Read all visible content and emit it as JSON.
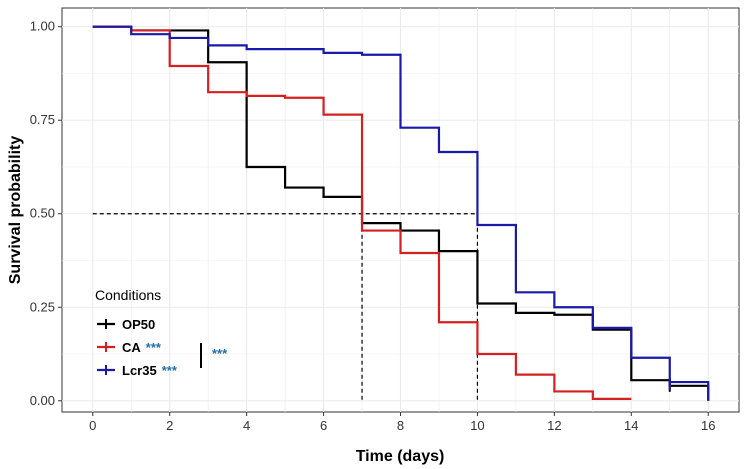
{
  "chart_data": {
    "type": "line",
    "step": true,
    "xlabel": "Time (days)",
    "ylabel": "Survival probability",
    "xlim": [
      -0.8,
      16.8
    ],
    "ylim": [
      -0.03,
      1.05
    ],
    "x_ticks": [
      0,
      2,
      4,
      6,
      8,
      10,
      12,
      14,
      16
    ],
    "y_ticks": [
      0.0,
      0.25,
      0.5,
      0.75,
      1.0
    ],
    "y_tick_labels": [
      "0.00",
      "0.25",
      "0.50",
      "0.75",
      "1.00"
    ],
    "grid": true,
    "median_guides": {
      "y": 0.5,
      "x_values": [
        7,
        10
      ]
    },
    "legend": {
      "title": "Conditions",
      "placement": "bottom-left",
      "comparison_marker": "***"
    },
    "series": [
      {
        "name": "OP50",
        "color": "#000000",
        "significance": "",
        "steps": [
          [
            0,
            1.0
          ],
          [
            1,
            0.99
          ],
          [
            3,
            0.905
          ],
          [
            4,
            0.625
          ],
          [
            5,
            0.57
          ],
          [
            6,
            0.545
          ],
          [
            7,
            0.475
          ],
          [
            8,
            0.455
          ],
          [
            9,
            0.4
          ],
          [
            10,
            0.26
          ],
          [
            11,
            0.235
          ],
          [
            12,
            0.23
          ],
          [
            13,
            0.19
          ],
          [
            14,
            0.055
          ],
          [
            15,
            0.04
          ],
          [
            16,
            0.0
          ]
        ],
        "censor": [
          [
            15,
            0.04
          ]
        ]
      },
      {
        "name": "CA",
        "color": "#d42020",
        "significance": "***",
        "steps": [
          [
            0,
            1.0
          ],
          [
            1,
            0.99
          ],
          [
            2,
            0.895
          ],
          [
            3,
            0.825
          ],
          [
            4,
            0.815
          ],
          [
            5,
            0.81
          ],
          [
            6,
            0.765
          ],
          [
            7,
            0.455
          ],
          [
            8,
            0.395
          ],
          [
            9,
            0.21
          ],
          [
            10,
            0.125
          ],
          [
            11,
            0.07
          ],
          [
            12,
            0.025
          ],
          [
            13,
            0.005
          ],
          [
            14,
            0.005
          ]
        ],
        "censor": []
      },
      {
        "name": "Lcr35",
        "color": "#1a1aaa",
        "significance": "***",
        "steps": [
          [
            0,
            1.0
          ],
          [
            1,
            0.98
          ],
          [
            2,
            0.97
          ],
          [
            3,
            0.95
          ],
          [
            4,
            0.94
          ],
          [
            6,
            0.93
          ],
          [
            7,
            0.925
          ],
          [
            8,
            0.73
          ],
          [
            9,
            0.665
          ],
          [
            10,
            0.47
          ],
          [
            11,
            0.29
          ],
          [
            12,
            0.25
          ],
          [
            13,
            0.195
          ],
          [
            14,
            0.115
          ],
          [
            15,
            0.05
          ],
          [
            16,
            0.0
          ]
        ],
        "censor": [
          [
            15,
            0.045
          ]
        ]
      }
    ],
    "sig_color": "#1e6fb0"
  }
}
